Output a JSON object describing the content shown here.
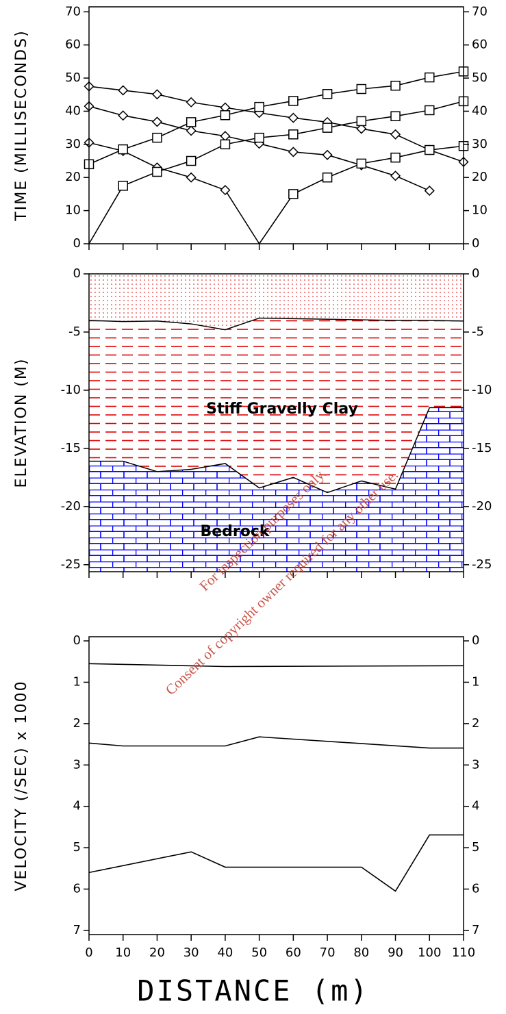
{
  "x_axis_title": "DISTANCE (m)",
  "watermark": [
    "For inspection purposes only.",
    "Consent of copyright owner required for any other use."
  ],
  "chart_data": [
    {
      "type": "line",
      "y_axis_title": "TIME (MILLISECONDS)",
      "x": [
        0,
        10,
        20,
        30,
        40,
        50,
        60,
        70,
        80,
        90,
        100,
        110
      ],
      "xlim": [
        0,
        110
      ],
      "xticks": [
        0,
        10,
        20,
        30,
        40,
        50,
        60,
        70,
        80,
        90,
        100,
        110
      ],
      "xtick_labels": false,
      "ylim": [
        0,
        71.5
      ],
      "yticks": [
        0,
        10,
        20,
        30,
        40,
        50,
        60,
        70
      ],
      "right_axis": true,
      "series": [
        {
          "marker": "diamond",
          "color": "#000000",
          "values": [
            47.5,
            46.3,
            45.1,
            42.7,
            41.1,
            39.5,
            38.0,
            36.7,
            34.7,
            33.0,
            28.3,
            24.7
          ]
        },
        {
          "marker": "diamond",
          "color": "#000000",
          "values": [
            41.5,
            38.7,
            36.8,
            34.1,
            32.5,
            30.2,
            27.7,
            26.8,
            23.7,
            20.5,
            16.0,
            null
          ]
        },
        {
          "marker": "diamond",
          "color": "#000000",
          "values": [
            30.5,
            28.0,
            23.0,
            20.0,
            16.2,
            0,
            null,
            null,
            null,
            null,
            null,
            null
          ]
        },
        {
          "marker": "square",
          "color": "#000000",
          "values": [
            24.0,
            28.5,
            32.0,
            36.7,
            38.8,
            41.3,
            43.1,
            45.2,
            46.7,
            47.7,
            50.2,
            52.0
          ]
        },
        {
          "marker": "square",
          "color": "#000000",
          "values": [
            0,
            17.5,
            21.7,
            25.0,
            30.0,
            32.0,
            33.0,
            35.0,
            37.0,
            38.5,
            40.3,
            43.0
          ]
        },
        {
          "marker": "square",
          "color": "#000000",
          "values": [
            null,
            null,
            null,
            null,
            null,
            0,
            15.0,
            20.0,
            24.2,
            26.0,
            28.3,
            29.5
          ]
        }
      ]
    },
    {
      "type": "cross_section",
      "y_axis_title": "ELEVATION (M)",
      "x": [
        0,
        10,
        20,
        30,
        40,
        50,
        60,
        70,
        80,
        90,
        100,
        110
      ],
      "xlim": [
        0,
        110
      ],
      "xticks": [
        0,
        10,
        20,
        30,
        40,
        50,
        60,
        70,
        80,
        90,
        100,
        110
      ],
      "xtick_labels": false,
      "ylim": [
        -25.6,
        0
      ],
      "yticks": [
        0,
        -5,
        -10,
        -15,
        -20,
        -25
      ],
      "right_axis": true,
      "boundaries": [
        {
          "color": "#000000",
          "values": [
            -4.0,
            -4.1,
            -4.05,
            -4.3,
            -4.8,
            -3.8,
            -3.85,
            -3.9,
            -3.95,
            -4.0,
            -4.0,
            -4.05
          ]
        },
        {
          "color": "#000000",
          "values": [
            -16.1,
            -16.1,
            -17.0,
            -16.8,
            -16.3,
            -18.4,
            -17.5,
            -18.8,
            -17.8,
            -18.5,
            -11.5,
            -11.5
          ]
        }
      ],
      "layers": [
        {
          "pattern": "dots",
          "color": "#e00000"
        },
        {
          "pattern": "dashes",
          "color": "#e00000",
          "label": "Stiff Gravelly Clay"
        },
        {
          "pattern": "bricks",
          "color": "#0000ff",
          "label": "Bedrock"
        }
      ]
    },
    {
      "type": "line",
      "y_axis_title": "VELOCITY (/SEC) x 1000",
      "xlim": [
        0,
        110
      ],
      "xticks": [
        0,
        10,
        20,
        30,
        40,
        50,
        60,
        70,
        80,
        90,
        100,
        110
      ],
      "xtick_labels": true,
      "ylim": [
        -0.1,
        7.1
      ],
      "y_inverted": true,
      "yticks": [
        0,
        1,
        2,
        3,
        4,
        5,
        6,
        7
      ],
      "right_axis": true,
      "series": [
        {
          "color": "#000000",
          "x": [
            0,
            40,
            110
          ],
          "values": [
            0.55,
            0.62,
            0.6
          ]
        },
        {
          "color": "#000000",
          "x": [
            0,
            10,
            40,
            50,
            100,
            110
          ],
          "values": [
            2.47,
            2.54,
            2.54,
            2.32,
            2.59,
            2.59
          ]
        },
        {
          "color": "#000000",
          "x": [
            0,
            30,
            40,
            80,
            90,
            100,
            110
          ],
          "values": [
            5.6,
            5.1,
            5.47,
            5.47,
            6.05,
            4.69,
            4.69
          ]
        }
      ]
    }
  ]
}
